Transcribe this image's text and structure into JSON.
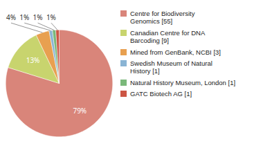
{
  "chart_data": {
    "type": "pie",
    "categories": [
      "Centre for Biodiversity\nGenomics [55]",
      "Canadian Centre for DNA\nBarcoding [9]",
      "Mined from GenBank, NCBI [3]",
      "Swedish Museum of Natural\nHistory [1]",
      "Natural History Museum, London [1]",
      "GATC Biotech AG [1]"
    ],
    "values": [
      79,
      13,
      4,
      1,
      1,
      1
    ],
    "value_labels": [
      "79%",
      "13%",
      "4%",
      "1%",
      "1%",
      "1%"
    ],
    "colors": [
      "#d9857a",
      "#c8d46e",
      "#e8a050",
      "#8ab4d4",
      "#7ab87a",
      "#cc5544"
    ],
    "data_labels": true,
    "legend": "right"
  }
}
